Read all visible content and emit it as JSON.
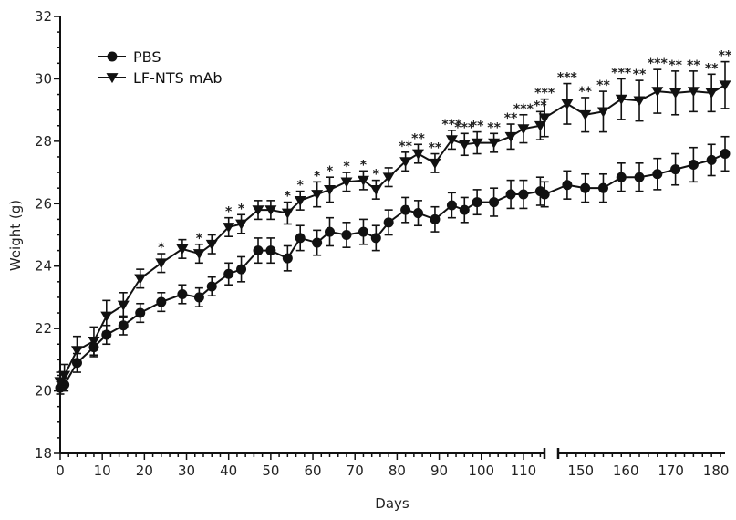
{
  "chart_data": {
    "type": "line",
    "title": "",
    "xlabel": "Days",
    "ylabel": "Weight (g)",
    "ylim": [
      18,
      32
    ],
    "y_ticks": [
      "18",
      "20",
      "22",
      "24",
      "26",
      "28",
      "30",
      "32"
    ],
    "x_ticks_left": [
      "0",
      "10",
      "20",
      "30",
      "40",
      "50",
      "60",
      "70",
      "80",
      "90",
      "100",
      "110"
    ],
    "x_ticks_right": [
      "150",
      "160",
      "170",
      "180"
    ],
    "x_break": {
      "before": 115,
      "after": 145
    },
    "grid": false,
    "legend_position": "top-left",
    "series": [
      {
        "name": "PBS",
        "marker": "circle",
        "color": "#111111",
        "x": [
          0,
          1,
          4,
          8,
          11,
          15,
          19,
          24,
          29,
          33,
          36,
          40,
          43,
          47,
          50,
          54,
          57,
          61,
          64,
          68,
          72,
          75,
          78,
          82,
          85,
          89,
          93,
          96,
          99,
          103,
          107,
          110,
          114,
          142,
          147,
          151,
          155,
          159,
          163,
          167,
          171,
          175,
          179,
          182
        ],
        "y": [
          20.1,
          20.2,
          20.9,
          21.4,
          21.8,
          22.1,
          22.5,
          22.85,
          23.1,
          23.0,
          23.35,
          23.75,
          23.9,
          24.5,
          24.5,
          24.25,
          24.9,
          24.75,
          25.1,
          25.0,
          25.1,
          24.9,
          25.4,
          25.8,
          25.7,
          25.5,
          25.95,
          25.8,
          26.05,
          26.05,
          26.3,
          26.3,
          26.4,
          26.3,
          26.6,
          26.5,
          26.5,
          26.85,
          26.85,
          26.95,
          27.1,
          27.25,
          27.4,
          27.6
        ],
        "err": [
          0.2,
          0.2,
          0.3,
          0.3,
          0.3,
          0.3,
          0.3,
          0.3,
          0.3,
          0.3,
          0.3,
          0.35,
          0.4,
          0.4,
          0.4,
          0.4,
          0.4,
          0.4,
          0.45,
          0.4,
          0.4,
          0.4,
          0.4,
          0.4,
          0.4,
          0.4,
          0.4,
          0.4,
          0.4,
          0.45,
          0.45,
          0.45,
          0.45,
          0.4,
          0.45,
          0.45,
          0.45,
          0.45,
          0.45,
          0.5,
          0.5,
          0.55,
          0.5,
          0.55
        ]
      },
      {
        "name": "LF-NTS mAb",
        "marker": "triangle-down",
        "color": "#111111",
        "x": [
          0,
          1,
          4,
          8,
          11,
          15,
          19,
          24,
          29,
          33,
          36,
          40,
          43,
          47,
          50,
          54,
          57,
          61,
          64,
          68,
          72,
          75,
          78,
          82,
          85,
          89,
          93,
          96,
          99,
          103,
          107,
          110,
          114,
          142,
          147,
          151,
          155,
          159,
          163,
          167,
          171,
          175,
          179,
          182
        ],
        "y": [
          20.3,
          20.5,
          21.3,
          21.6,
          22.4,
          22.75,
          23.6,
          24.1,
          24.55,
          24.4,
          24.7,
          25.25,
          25.35,
          25.8,
          25.8,
          25.7,
          26.1,
          26.3,
          26.45,
          26.7,
          26.75,
          26.45,
          26.85,
          27.35,
          27.6,
          27.3,
          28.05,
          27.9,
          27.95,
          27.95,
          28.15,
          28.4,
          28.5,
          28.75,
          29.2,
          28.85,
          28.95,
          29.35,
          29.3,
          29.6,
          29.55,
          29.6,
          29.55,
          29.8
        ],
        "err": [
          0.3,
          0.35,
          0.45,
          0.45,
          0.5,
          0.4,
          0.3,
          0.3,
          0.3,
          0.3,
          0.3,
          0.3,
          0.3,
          0.3,
          0.3,
          0.35,
          0.3,
          0.4,
          0.4,
          0.3,
          0.3,
          0.3,
          0.3,
          0.3,
          0.3,
          0.3,
          0.3,
          0.35,
          0.35,
          0.3,
          0.4,
          0.45,
          0.45,
          0.6,
          0.65,
          0.55,
          0.65,
          0.65,
          0.65,
          0.7,
          0.7,
          0.65,
          0.6,
          0.75
        ]
      }
    ],
    "annotations": [
      {
        "x": 24,
        "text": "*"
      },
      {
        "x": 33,
        "text": "*"
      },
      {
        "x": 40,
        "text": "*"
      },
      {
        "x": 43,
        "text": "*"
      },
      {
        "x": 54,
        "text": "*"
      },
      {
        "x": 57,
        "text": "*"
      },
      {
        "x": 61,
        "text": "*"
      },
      {
        "x": 64,
        "text": "*"
      },
      {
        "x": 68,
        "text": "*"
      },
      {
        "x": 72,
        "text": "*"
      },
      {
        "x": 75,
        "text": "*"
      },
      {
        "x": 82,
        "text": "**"
      },
      {
        "x": 85,
        "text": "**"
      },
      {
        "x": 89,
        "text": "**"
      },
      {
        "x": 93,
        "text": "***"
      },
      {
        "x": 96,
        "text": "***"
      },
      {
        "x": 99,
        "text": "**"
      },
      {
        "x": 103,
        "text": "**"
      },
      {
        "x": 107,
        "text": "**"
      },
      {
        "x": 110,
        "text": "***"
      },
      {
        "x": 114,
        "text": "**"
      },
      {
        "x": 142,
        "text": "***"
      },
      {
        "x": 147,
        "text": "***"
      },
      {
        "x": 151,
        "text": "**"
      },
      {
        "x": 155,
        "text": "**"
      },
      {
        "x": 159,
        "text": "***"
      },
      {
        "x": 163,
        "text": "**"
      },
      {
        "x": 167,
        "text": "***"
      },
      {
        "x": 171,
        "text": "**"
      },
      {
        "x": 175,
        "text": "**"
      },
      {
        "x": 179,
        "text": "**"
      },
      {
        "x": 182,
        "text": "**"
      }
    ]
  }
}
